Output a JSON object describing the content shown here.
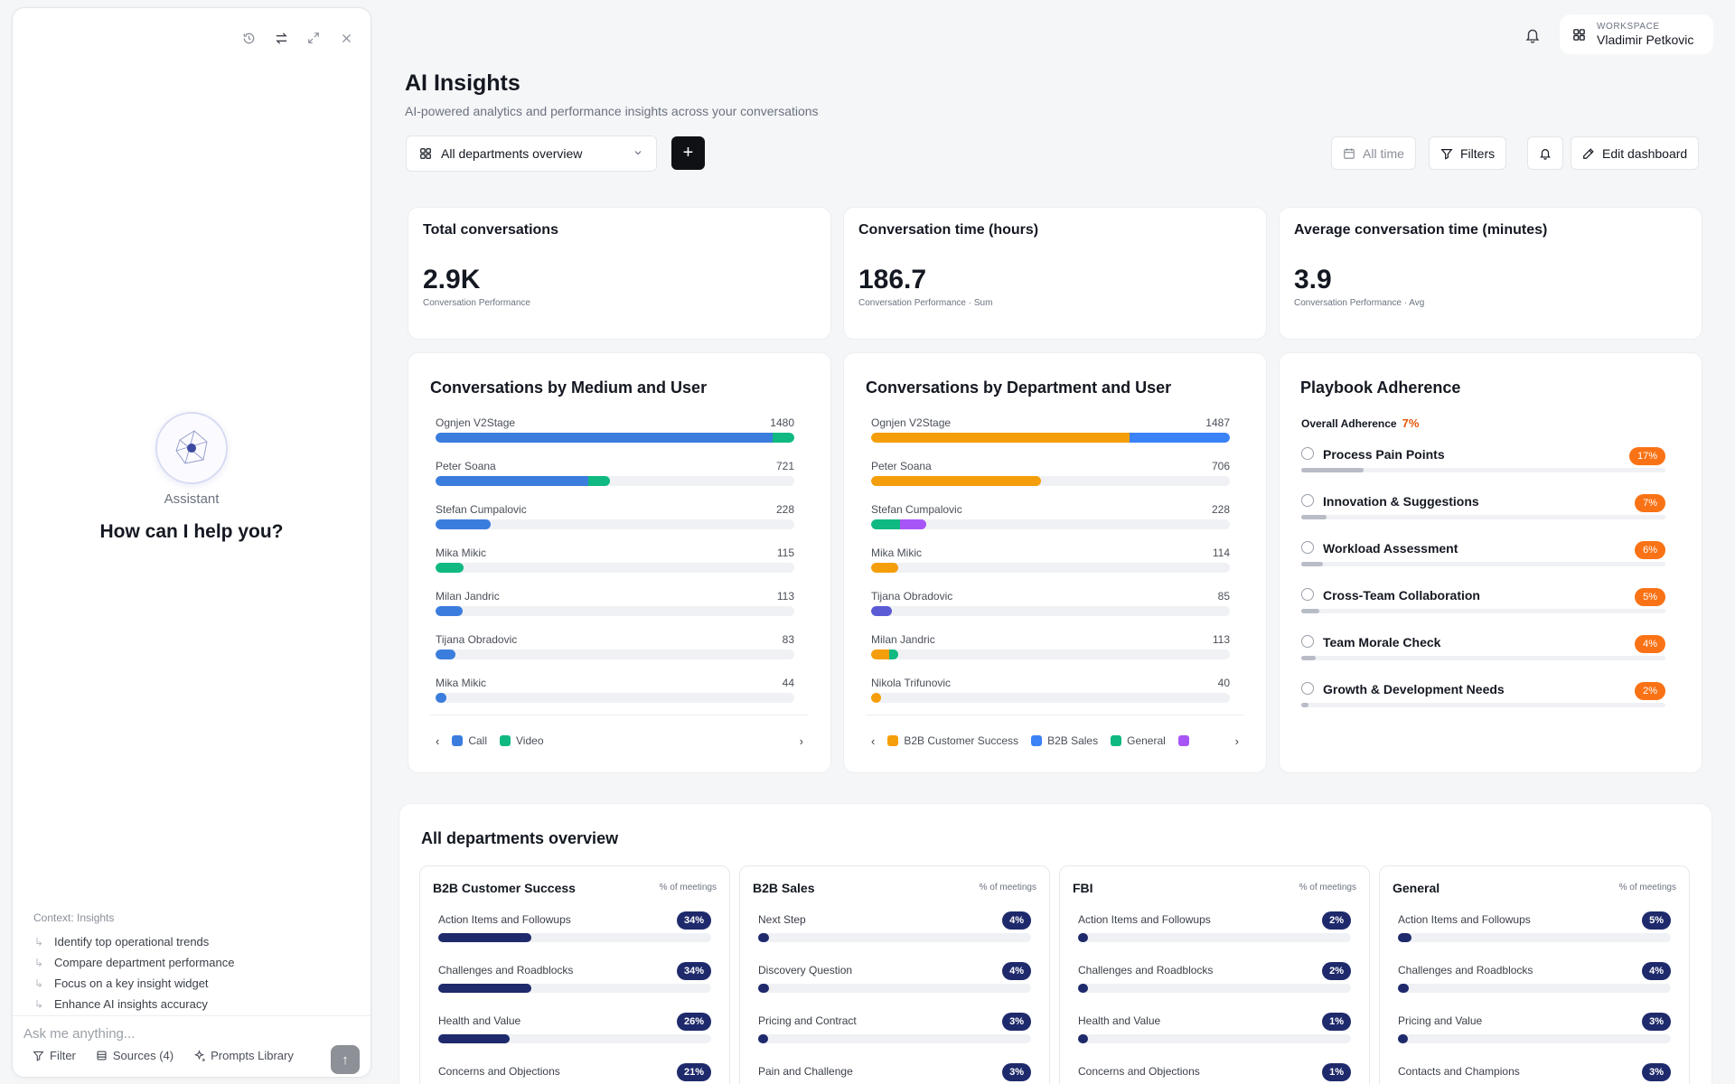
{
  "assistant": {
    "name": "Assistant",
    "prompt_title": "How can I help you?",
    "context": "Context: Insights",
    "suggestions": [
      "Identify top operational trends",
      "Compare department performance",
      "Focus on a key insight widget",
      "Enhance AI insights accuracy"
    ],
    "input_placeholder": "Ask me anything...",
    "filter_label": "Filter",
    "sources_label": "Sources (4)",
    "prompts_label": "Prompts Library"
  },
  "workspace": {
    "label": "WORKSPACE",
    "user": "Vladimir Petkovic"
  },
  "page": {
    "title": "AI Insights",
    "subtitle": "AI-powered analytics and performance insights across your conversations"
  },
  "toolbar": {
    "dept_select": "All departments overview",
    "all_time": "All time",
    "filters": "Filters",
    "edit_dashboard": "Edit dashboard"
  },
  "kpis": [
    {
      "title": "Total conversations",
      "value": "2.9K",
      "sub": "Conversation Performance"
    },
    {
      "title": "Conversation time (hours)",
      "value": "186.7",
      "sub": "Conversation Performance · Sum"
    },
    {
      "title": "Average conversation time (minutes)",
      "value": "3.9",
      "sub": "Conversation Performance · Avg"
    }
  ],
  "colors": {
    "call": "#3b7ddd",
    "video": "#10b981",
    "b2b_customer_success": "#f59e0b",
    "b2b_sales": "#3b82f6",
    "general": "#10b981",
    "purple": "#a855f7",
    "indigo": "#5b5bd6",
    "accent_orange": "#f97316",
    "navy": "#1e2a6b"
  },
  "chart_data": [
    {
      "type": "bar",
      "orientation": "horizontal-stacked",
      "title": "Conversations by Medium and User",
      "max": 1480,
      "legend": [
        "Call",
        "Video"
      ],
      "rows": [
        {
          "name": "Ognjen V2Stage",
          "total": 1480,
          "segments": [
            {
              "color": "#3b7ddd",
              "value": 1390
            },
            {
              "color": "#10b981",
              "value": 90
            }
          ]
        },
        {
          "name": "Peter Soana",
          "total": 721,
          "segments": [
            {
              "color": "#3b7ddd",
              "value": 631
            },
            {
              "color": "#10b981",
              "value": 90
            }
          ]
        },
        {
          "name": "Stefan Cumpalovic",
          "total": 228,
          "segments": [
            {
              "color": "#3b7ddd",
              "value": 228
            }
          ]
        },
        {
          "name": "Mika Mikic",
          "total": 115,
          "segments": [
            {
              "color": "#10b981",
              "value": 115
            }
          ]
        },
        {
          "name": "Milan Jandric",
          "total": 113,
          "segments": [
            {
              "color": "#3b7ddd",
              "value": 113
            }
          ]
        },
        {
          "name": "Tijana Obradovic",
          "total": 83,
          "segments": [
            {
              "color": "#3b7ddd",
              "value": 83
            }
          ]
        },
        {
          "name": "Mika Mikic",
          "total": 44,
          "segments": [
            {
              "color": "#3b7ddd",
              "value": 44
            }
          ]
        }
      ]
    },
    {
      "type": "bar",
      "orientation": "horizontal-stacked",
      "title": "Conversations by Department and User",
      "max": 1487,
      "legend": [
        "B2B Customer Success",
        "B2B Sales",
        "General"
      ],
      "rows": [
        {
          "name": "Ognjen V2Stage",
          "total": 1487,
          "segments": [
            {
              "color": "#f59e0b",
              "value": 1070
            },
            {
              "color": "#3b82f6",
              "value": 417
            }
          ]
        },
        {
          "name": "Peter Soana",
          "total": 706,
          "segments": [
            {
              "color": "#f59e0b",
              "value": 706
            }
          ]
        },
        {
          "name": "Stefan Cumpalovic",
          "total": 228,
          "segments": [
            {
              "color": "#10b981",
              "value": 118
            },
            {
              "color": "#a855f7",
              "value": 110
            }
          ]
        },
        {
          "name": "Mika Mikic",
          "total": 114,
          "segments": [
            {
              "color": "#f59e0b",
              "value": 114
            }
          ]
        },
        {
          "name": "Tijana Obradovic",
          "total": 85,
          "segments": [
            {
              "color": "#5b5bd6",
              "value": 85
            }
          ]
        },
        {
          "name": "Milan Jandric",
          "total": 113,
          "segments": [
            {
              "color": "#f59e0b",
              "value": 75
            },
            {
              "color": "#10b981",
              "value": 38
            }
          ]
        },
        {
          "name": "Nikola Trifunovic",
          "total": 40,
          "segments": [
            {
              "color": "#f59e0b",
              "value": 40
            }
          ]
        }
      ]
    }
  ],
  "playbook": {
    "title": "Playbook Adherence",
    "overall_label": "Overall Adherence",
    "overall_value": "7%",
    "items": [
      {
        "label": "Process Pain Points",
        "pct": "17%",
        "fill": 0.17
      },
      {
        "label": "Innovation & Suggestions",
        "pct": "7%",
        "fill": 0.07
      },
      {
        "label": "Workload Assessment",
        "pct": "6%",
        "fill": 0.06
      },
      {
        "label": "Cross-Team Collaboration",
        "pct": "5%",
        "fill": 0.05
      },
      {
        "label": "Team Morale Check",
        "pct": "4%",
        "fill": 0.04
      },
      {
        "label": "Growth & Development Needs",
        "pct": "2%",
        "fill": 0.02
      }
    ]
  },
  "overview": {
    "title": "All departments overview",
    "meta_label": "% of meetings",
    "departments": [
      {
        "name": "B2B Customer Success",
        "items": [
          {
            "label": "Action Items and Followups",
            "pct": "34%",
            "fill": 0.34
          },
          {
            "label": "Challenges and Roadblocks",
            "pct": "34%",
            "fill": 0.34
          },
          {
            "label": "Health and Value",
            "pct": "26%",
            "fill": 0.26
          },
          {
            "label": "Concerns and Objections",
            "pct": "21%",
            "fill": 0.21
          }
        ]
      },
      {
        "name": "B2B Sales",
        "items": [
          {
            "label": "Next Step",
            "pct": "4%",
            "fill": 0.04
          },
          {
            "label": "Discovery Question",
            "pct": "4%",
            "fill": 0.04
          },
          {
            "label": "Pricing and Contract",
            "pct": "3%",
            "fill": 0.03
          },
          {
            "label": "Pain and Challenge",
            "pct": "3%",
            "fill": 0.03
          }
        ]
      },
      {
        "name": "FBI",
        "items": [
          {
            "label": "Action Items and Followups",
            "pct": "2%",
            "fill": 0.02
          },
          {
            "label": "Challenges and Roadblocks",
            "pct": "2%",
            "fill": 0.02
          },
          {
            "label": "Health and Value",
            "pct": "1%",
            "fill": 0.01
          },
          {
            "label": "Concerns and Objections",
            "pct": "1%",
            "fill": 0.01
          }
        ]
      },
      {
        "name": "General",
        "items": [
          {
            "label": "Action Items and Followups",
            "pct": "5%",
            "fill": 0.05
          },
          {
            "label": "Challenges and Roadblocks",
            "pct": "4%",
            "fill": 0.04
          },
          {
            "label": "Pricing and Value",
            "pct": "3%",
            "fill": 0.03
          },
          {
            "label": "Contacts and Champions",
            "pct": "3%",
            "fill": 0.03
          }
        ]
      }
    ]
  }
}
